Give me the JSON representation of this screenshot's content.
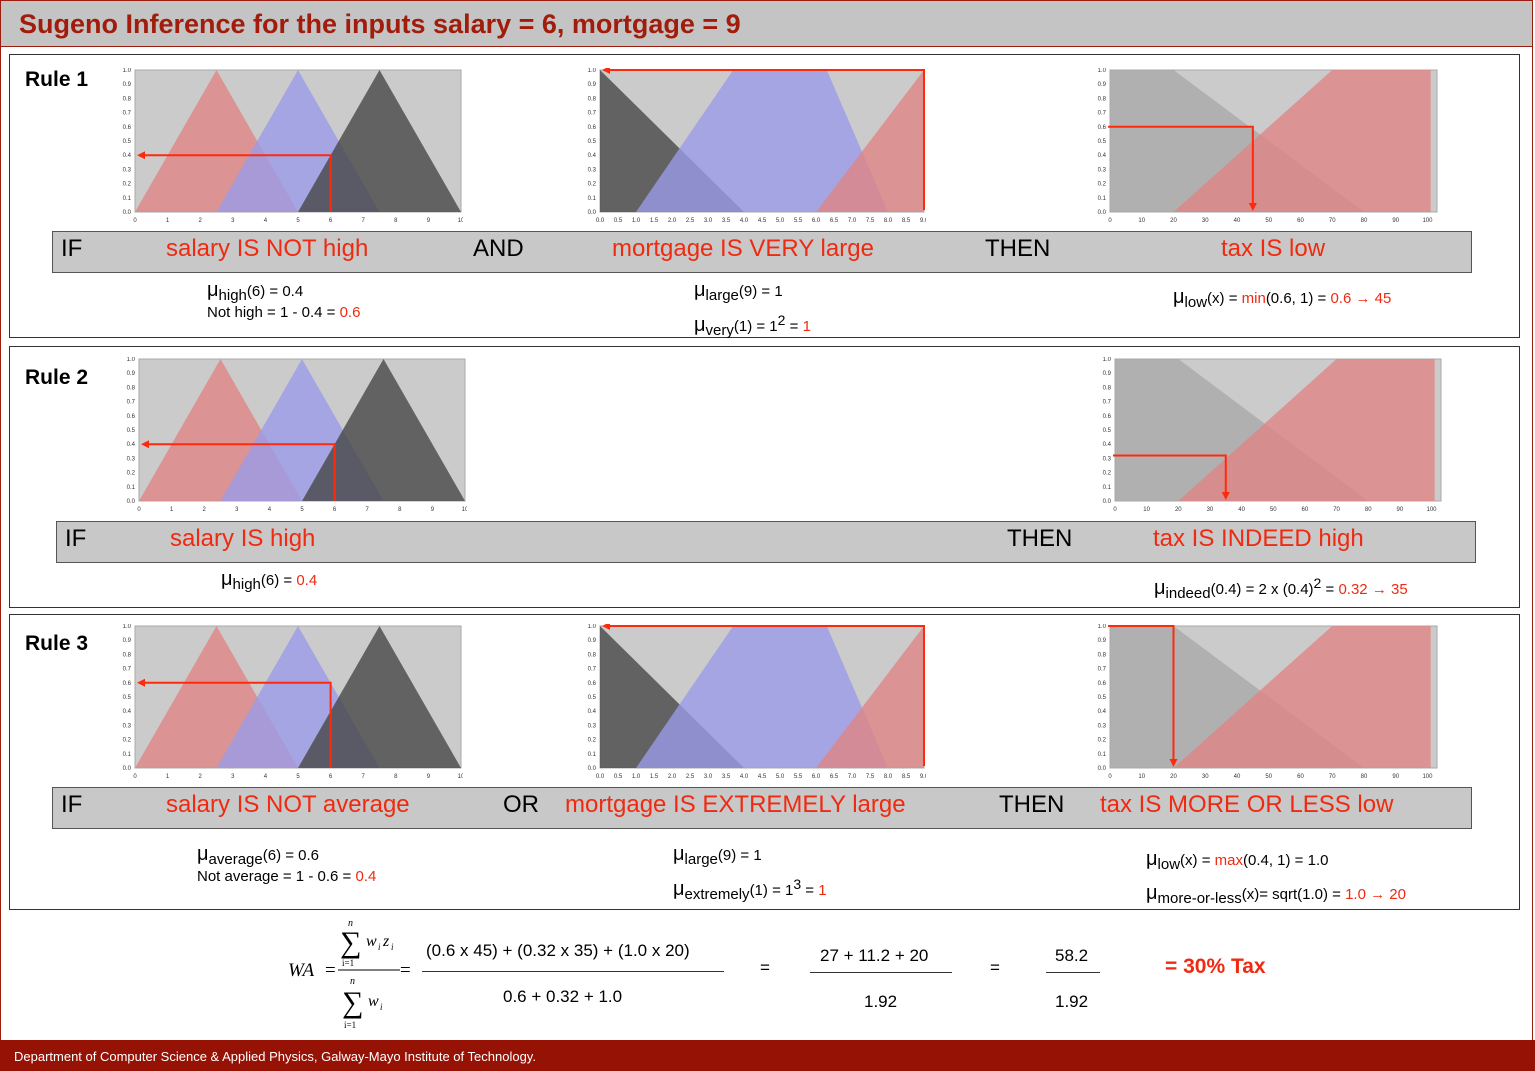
{
  "title": "Sugeno Inference for the inputs salary = 6, mortgage = 9",
  "footer": "Department of Computer Science & Applied Physics, Galway-Mayo Institute of Technology.",
  "colors": {
    "accent": "#a21c0c",
    "red_text": "#ef2a10",
    "plot_bg": "#cbcbcb",
    "red_mf": "#e08585",
    "blue_mf": "#9b9be8",
    "dark_mf": "#474747",
    "light_mf": "#a9a9a9",
    "arrow": "#ff2a0c"
  },
  "yticks": [
    "0.0",
    "0.1",
    "0.2",
    "0.3",
    "0.4",
    "0.5",
    "0.6",
    "0.7",
    "0.8",
    "0.9",
    "1.0"
  ],
  "xticks": {
    "salary": [
      "0",
      "1",
      "2",
      "3",
      "4",
      "5",
      "6",
      "7",
      "8",
      "9",
      "10"
    ],
    "mortgage": [
      "0.0",
      "0.5",
      "1.0",
      "1.5",
      "2.0",
      "2.5",
      "3.0",
      "3.5",
      "4.0",
      "4.5",
      "5.0",
      "5.5",
      "6.0",
      "6.5",
      "7.0",
      "7.5",
      "8.0",
      "8.5",
      "9.0"
    ],
    "tax": [
      "0",
      "10",
      "20",
      "30",
      "40",
      "50",
      "60",
      "70",
      "80",
      "90",
      "100"
    ]
  },
  "rule1": {
    "title": "Rule 1",
    "if": "IF",
    "clause1": "salary IS NOT high",
    "op": "AND",
    "clause2": "mortgage IS VERY large",
    "then": "THEN",
    "consequent": "tax IS low",
    "n1": {
      "mu": "μ",
      "sub": "high",
      "a": "(6) = 0.4",
      "line2": "Not high = 1 - 0.4 = ",
      "line2_red": "0.6"
    },
    "n2": {
      "mu": "μ",
      "sub1": "large",
      "a": "(9) = 1",
      "mu2": "μ",
      "sub2": "very",
      "b": "(1) = 1",
      "sup": "2",
      "c": " = ",
      "red": "1"
    },
    "n3": {
      "mu": "μ",
      "sub": "low",
      "a": "(x) = ",
      "red1": "min",
      "b": "(0.6, 1) = ",
      "red2": "0.6 → 45"
    }
  },
  "rule2": {
    "title": "Rule 2",
    "if": "IF",
    "clause1": "salary IS high",
    "then": "THEN",
    "consequent": "tax IS INDEED high",
    "n1": {
      "mu": "μ",
      "sub": "high",
      "a": "(6) = ",
      "red": "0.4"
    },
    "n3": {
      "mu": "μ",
      "sub": "indeed",
      "a": "(0.4) = 2 x (0.4)",
      "sup": "2",
      "b": " = ",
      "red": "0.32 → 35"
    }
  },
  "rule3": {
    "title": "Rule 3",
    "if": "IF",
    "clause1": "salary IS NOT average",
    "op": "OR",
    "clause2": "mortgage IS EXTREMELY large",
    "then": "THEN",
    "consequent": "tax IS MORE OR LESS low",
    "n1": {
      "mu": "μ",
      "sub": "average",
      "a": "(6) = 0.6",
      "line2": "Not average = 1 - 0.6 = ",
      "line2_red": "0.4"
    },
    "n2": {
      "mu": "μ",
      "sub1": "large",
      "a": "(9) = 1",
      "mu2": "μ",
      "sub2": "extremely",
      "b": "(1) = 1",
      "sup": "3",
      "c": " = ",
      "red": "1"
    },
    "n3": {
      "mu": "μ",
      "sub1": "low",
      "a": "(x) = ",
      "red1": "max",
      "b": "(0.4, 1) = 1.0",
      "mu2": "μ",
      "sub2": "more-or-less",
      "c": "(x)= sqrt(1.0) = ",
      "red2": "1.0 → 20"
    }
  },
  "formula": {
    "wa": "WA",
    "eq": "=",
    "sum_top": "n",
    "sum_bottom": "i=1",
    "num_term": "w",
    "num_sub": "i",
    "num_term2": "z",
    "num_sub2": "i",
    "den_term": "w",
    "den_sub": "i",
    "num1": "(0.6 x 45) + (0.32 x 35) + (1.0 x 20)",
    "den1": "0.6 + 0.32 + 1.0",
    "num2": "27 + 11.2 + 20",
    "den2": "1.92",
    "num3": "58.2",
    "den3": "1.92",
    "eq2": "=",
    "eq3": "=",
    "result": "= 30% Tax"
  }
}
